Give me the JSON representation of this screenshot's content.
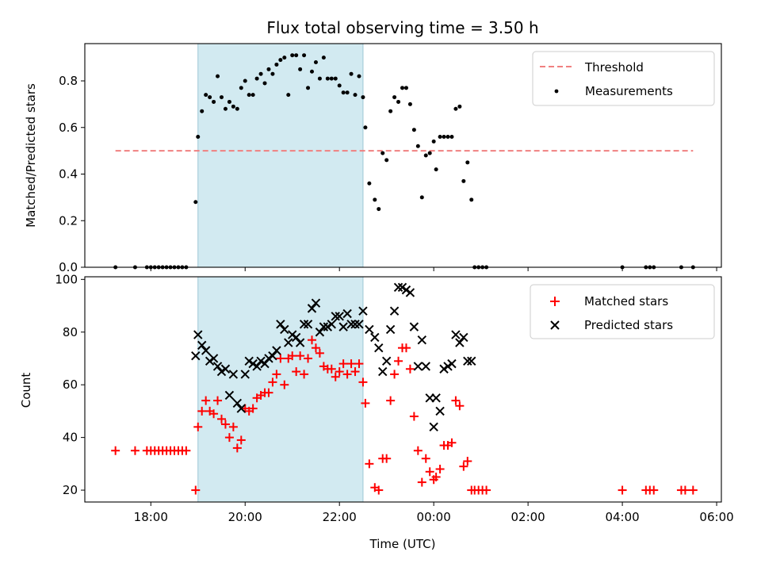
{
  "chart_data": [
    {
      "type": "scatter",
      "title": "Flux total observing time = 3.50 h",
      "xlabel": "",
      "ylabel": "Matched/Predicted stars",
      "xlim": [
        "16:36",
        "06:06"
      ],
      "ylim": [
        0,
        0.96
      ],
      "yticks": [
        "0.0",
        "0.2",
        "0.4",
        "0.6",
        "0.8"
      ],
      "shaded_interval": [
        "19:00",
        "22:30"
      ],
      "legend_position": "top-right",
      "grid": false,
      "threshold": {
        "name": "Threshold",
        "value": 0.5,
        "x": [
          "17:15",
          "05:30"
        ],
        "color": "#f08080"
      },
      "series": [
        {
          "name": "Measurements",
          "color": "#000000",
          "points": [
            [
              "17:15",
              0
            ],
            [
              "17:40",
              0
            ],
            [
              "17:55",
              0
            ],
            [
              "18:00",
              0
            ],
            [
              "18:05",
              0
            ],
            [
              "18:10",
              0
            ],
            [
              "18:15",
              0
            ],
            [
              "18:20",
              0
            ],
            [
              "18:25",
              0
            ],
            [
              "18:30",
              0
            ],
            [
              "18:35",
              0
            ],
            [
              "18:40",
              0
            ],
            [
              "18:45",
              0
            ],
            [
              "18:57",
              0.28
            ],
            [
              "19:00",
              0.56
            ],
            [
              "19:05",
              0.67
            ],
            [
              "19:10",
              0.74
            ],
            [
              "19:15",
              0.73
            ],
            [
              "19:20",
              0.71
            ],
            [
              "19:25",
              0.82
            ],
            [
              "19:30",
              0.73
            ],
            [
              "19:35",
              0.68
            ],
            [
              "19:40",
              0.71
            ],
            [
              "19:45",
              0.69
            ],
            [
              "19:50",
              0.68
            ],
            [
              "19:55",
              0.77
            ],
            [
              "20:00",
              0.8
            ],
            [
              "20:05",
              0.74
            ],
            [
              "20:10",
              0.74
            ],
            [
              "20:15",
              0.81
            ],
            [
              "20:20",
              0.83
            ],
            [
              "20:25",
              0.79
            ],
            [
              "20:30",
              0.85
            ],
            [
              "20:35",
              0.83
            ],
            [
              "20:40",
              0.87
            ],
            [
              "20:45",
              0.89
            ],
            [
              "20:50",
              0.9
            ],
            [
              "20:55",
              0.74
            ],
            [
              "21:00",
              0.91
            ],
            [
              "21:05",
              0.91
            ],
            [
              "21:10",
              0.85
            ],
            [
              "21:15",
              0.91
            ],
            [
              "21:20",
              0.77
            ],
            [
              "21:25",
              0.84
            ],
            [
              "21:30",
              0.88
            ],
            [
              "21:35",
              0.81
            ],
            [
              "21:40",
              0.9
            ],
            [
              "21:45",
              0.81
            ],
            [
              "21:50",
              0.81
            ],
            [
              "21:55",
              0.81
            ],
            [
              "22:00",
              0.78
            ],
            [
              "22:05",
              0.75
            ],
            [
              "22:10",
              0.75
            ],
            [
              "22:15",
              0.83
            ],
            [
              "22:20",
              0.74
            ],
            [
              "22:25",
              0.82
            ],
            [
              "22:30",
              0.73
            ],
            [
              "22:33",
              0.6
            ],
            [
              "22:38",
              0.36
            ],
            [
              "22:45",
              0.29
            ],
            [
              "22:50",
              0.25
            ],
            [
              "22:55",
              0.49
            ],
            [
              "23:00",
              0.46
            ],
            [
              "23:05",
              0.67
            ],
            [
              "23:10",
              0.73
            ],
            [
              "23:15",
              0.71
            ],
            [
              "23:20",
              0.77
            ],
            [
              "23:25",
              0.77
            ],
            [
              "23:30",
              0.7
            ],
            [
              "23:35",
              0.59
            ],
            [
              "23:40",
              0.52
            ],
            [
              "23:45",
              0.3
            ],
            [
              "23:50",
              0.48
            ],
            [
              "23:55",
              0.49
            ],
            [
              "00:00",
              0.54
            ],
            [
              "00:03",
              0.42
            ],
            [
              "00:08",
              0.56
            ],
            [
              "00:13",
              0.56
            ],
            [
              "00:18",
              0.56
            ],
            [
              "00:23",
              0.56
            ],
            [
              "00:28",
              0.68
            ],
            [
              "00:33",
              0.69
            ],
            [
              "00:38",
              0.37
            ],
            [
              "00:43",
              0.45
            ],
            [
              "00:48",
              0.29
            ],
            [
              "00:52",
              0
            ],
            [
              "00:57",
              0
            ],
            [
              "01:02",
              0
            ],
            [
              "01:07",
              0
            ],
            [
              "04:00",
              0
            ],
            [
              "04:30",
              0
            ],
            [
              "04:35",
              0
            ],
            [
              "04:40",
              0
            ],
            [
              "05:15",
              0
            ],
            [
              "05:30",
              0
            ]
          ]
        }
      ]
    },
    {
      "type": "scatter",
      "title": "",
      "xlabel": "Time (UTC)",
      "ylabel": "Count",
      "xlim": [
        "16:36",
        "06:06"
      ],
      "ylim": [
        15.5,
        101
      ],
      "yticks": [
        "20",
        "40",
        "60",
        "80",
        "100"
      ],
      "xticks": [
        "18:00",
        "20:00",
        "22:00",
        "00:00",
        "02:00",
        "04:00",
        "06:00"
      ],
      "shaded_interval": [
        "19:00",
        "22:30"
      ],
      "legend_position": "top-right",
      "grid": false,
      "series": [
        {
          "name": "Matched stars",
          "marker": "plus",
          "color": "#ff0000",
          "points": [
            [
              "17:15",
              35
            ],
            [
              "17:40",
              35
            ],
            [
              "17:55",
              35
            ],
            [
              "18:00",
              35
            ],
            [
              "18:05",
              35
            ],
            [
              "18:10",
              35
            ],
            [
              "18:15",
              35
            ],
            [
              "18:20",
              35
            ],
            [
              "18:25",
              35
            ],
            [
              "18:30",
              35
            ],
            [
              "18:35",
              35
            ],
            [
              "18:40",
              35
            ],
            [
              "18:45",
              35
            ],
            [
              "18:57",
              20
            ],
            [
              "19:00",
              44
            ],
            [
              "19:05",
              50
            ],
            [
              "19:10",
              54
            ],
            [
              "19:15",
              50
            ],
            [
              "19:20",
              49
            ],
            [
              "19:25",
              54
            ],
            [
              "19:30",
              47
            ],
            [
              "19:35",
              45
            ],
            [
              "19:40",
              40
            ],
            [
              "19:45",
              44
            ],
            [
              "19:50",
              36
            ],
            [
              "19:55",
              39
            ],
            [
              "20:00",
              51
            ],
            [
              "20:05",
              50
            ],
            [
              "20:10",
              51
            ],
            [
              "20:15",
              55
            ],
            [
              "20:20",
              56
            ],
            [
              "20:25",
              57
            ],
            [
              "20:30",
              57
            ],
            [
              "20:35",
              61
            ],
            [
              "20:40",
              64
            ],
            [
              "20:45",
              70
            ],
            [
              "20:50",
              60
            ],
            [
              "20:55",
              70
            ],
            [
              "21:00",
              71
            ],
            [
              "21:05",
              65
            ],
            [
              "21:10",
              71
            ],
            [
              "21:15",
              64
            ],
            [
              "21:20",
              70
            ],
            [
              "21:25",
              77
            ],
            [
              "21:30",
              74
            ],
            [
              "21:35",
              72
            ],
            [
              "21:40",
              67
            ],
            [
              "21:45",
              66
            ],
            [
              "21:50",
              66
            ],
            [
              "21:55",
              63
            ],
            [
              "22:00",
              65
            ],
            [
              "22:05",
              68
            ],
            [
              "22:10",
              64
            ],
            [
              "22:15",
              68
            ],
            [
              "22:20",
              65
            ],
            [
              "22:25",
              68
            ],
            [
              "22:30",
              61
            ],
            [
              "22:33",
              53
            ],
            [
              "22:38",
              30
            ],
            [
              "22:45",
              21
            ],
            [
              "22:50",
              20
            ],
            [
              "22:55",
              32
            ],
            [
              "23:00",
              32
            ],
            [
              "23:05",
              54
            ],
            [
              "23:10",
              64
            ],
            [
              "23:15",
              69
            ],
            [
              "23:20",
              74
            ],
            [
              "23:25",
              74
            ],
            [
              "23:30",
              66
            ],
            [
              "23:35",
              48
            ],
            [
              "23:40",
              35
            ],
            [
              "23:45",
              23
            ],
            [
              "23:50",
              32
            ],
            [
              "23:55",
              27
            ],
            [
              "00:00",
              24
            ],
            [
              "00:03",
              25
            ],
            [
              "00:08",
              28
            ],
            [
              "00:13",
              37
            ],
            [
              "00:18",
              37
            ],
            [
              "00:23",
              38
            ],
            [
              "00:28",
              54
            ],
            [
              "00:33",
              52
            ],
            [
              "00:38",
              29
            ],
            [
              "00:43",
              31
            ],
            [
              "00:48",
              20
            ],
            [
              "00:52",
              20
            ],
            [
              "00:57",
              20
            ],
            [
              "01:02",
              20
            ],
            [
              "01:07",
              20
            ],
            [
              "04:00",
              20
            ],
            [
              "04:30",
              20
            ],
            [
              "04:35",
              20
            ],
            [
              "04:40",
              20
            ],
            [
              "05:15",
              20
            ],
            [
              "05:20",
              20
            ],
            [
              "05:30",
              20
            ]
          ]
        },
        {
          "name": "Predicted stars",
          "marker": "x",
          "color": "#000000",
          "points": [
            [
              "18:57",
              71
            ],
            [
              "19:00",
              79
            ],
            [
              "19:05",
              75
            ],
            [
              "19:10",
              73
            ],
            [
              "19:15",
              69
            ],
            [
              "19:20",
              70
            ],
            [
              "19:25",
              67
            ],
            [
              "19:30",
              65
            ],
            [
              "19:35",
              66
            ],
            [
              "19:40",
              56
            ],
            [
              "19:45",
              64
            ],
            [
              "19:50",
              53
            ],
            [
              "19:55",
              51
            ],
            [
              "20:00",
              64
            ],
            [
              "20:05",
              69
            ],
            [
              "20:10",
              68
            ],
            [
              "20:15",
              67
            ],
            [
              "20:20",
              69
            ],
            [
              "20:25",
              68
            ],
            [
              "20:30",
              70
            ],
            [
              "20:35",
              71
            ],
            [
              "20:40",
              73
            ],
            [
              "20:45",
              83
            ],
            [
              "20:50",
              81
            ],
            [
              "20:55",
              76
            ],
            [
              "21:00",
              79
            ],
            [
              "21:05",
              78
            ],
            [
              "21:10",
              76
            ],
            [
              "21:15",
              83
            ],
            [
              "21:20",
              83
            ],
            [
              "21:25",
              89
            ],
            [
              "21:30",
              91
            ],
            [
              "21:35",
              80
            ],
            [
              "21:40",
              82
            ],
            [
              "21:45",
              82
            ],
            [
              "21:50",
              83
            ],
            [
              "21:55",
              86
            ],
            [
              "22:00",
              86
            ],
            [
              "22:05",
              82
            ],
            [
              "22:10",
              87
            ],
            [
              "22:15",
              83
            ],
            [
              "22:20",
              83
            ],
            [
              "22:25",
              83
            ],
            [
              "22:30",
              88
            ],
            [
              "22:38",
              81
            ],
            [
              "22:45",
              78
            ],
            [
              "22:50",
              74
            ],
            [
              "22:55",
              65
            ],
            [
              "23:00",
              69
            ],
            [
              "23:05",
              81
            ],
            [
              "23:10",
              88
            ],
            [
              "23:15",
              97
            ],
            [
              "23:20",
              97
            ],
            [
              "23:25",
              96
            ],
            [
              "23:30",
              95
            ],
            [
              "23:35",
              82
            ],
            [
              "23:40",
              67
            ],
            [
              "23:45",
              77
            ],
            [
              "23:50",
              67
            ],
            [
              "23:55",
              55
            ],
            [
              "00:00",
              44
            ],
            [
              "00:03",
              55
            ],
            [
              "00:08",
              50
            ],
            [
              "00:13",
              66
            ],
            [
              "00:18",
              67
            ],
            [
              "00:23",
              68
            ],
            [
              "00:28",
              79
            ],
            [
              "00:33",
              76
            ],
            [
              "00:38",
              78
            ],
            [
              "00:43",
              69
            ],
            [
              "00:48",
              69
            ]
          ]
        }
      ]
    }
  ]
}
